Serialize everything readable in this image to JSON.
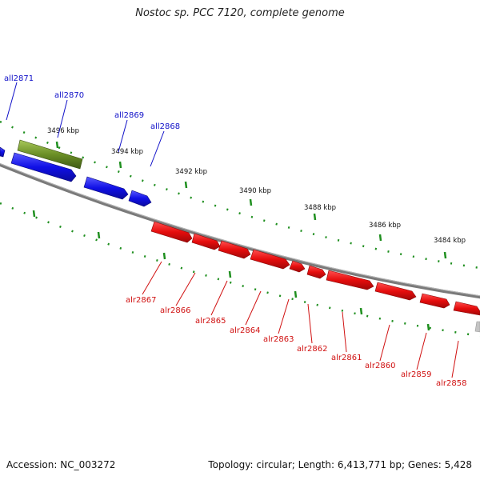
{
  "title": "Nostoc sp. PCC 7120, complete genome",
  "accession_text": "Accession: NC_003272",
  "info_text": "Topology: circular; Length: 6,413,771 bp; Genes: 5,428",
  "colors": {
    "reverse_gene": "#1010e6",
    "forward_gene": "#e60d0d",
    "rna_gene": "#6b8f26",
    "backbone": "#808080",
    "tick": "#1f8f1f",
    "reverse_label": "#1010c8",
    "forward_label": "#d01010"
  },
  "scale_labels": [
    "3496 kbp",
    "3494 kbp",
    "3492 kbp",
    "3490 kbp",
    "3488 kbp",
    "3486 kbp",
    "3484 kbp"
  ],
  "reverse_genes": [
    "all2871",
    "all2870",
    "all2869",
    "all2868"
  ],
  "forward_genes": [
    "alr2867",
    "alr2866",
    "alr2865",
    "alr2864",
    "alr2863",
    "alr2862",
    "alr2861",
    "alr2860",
    "alr2859",
    "alr2858"
  ]
}
